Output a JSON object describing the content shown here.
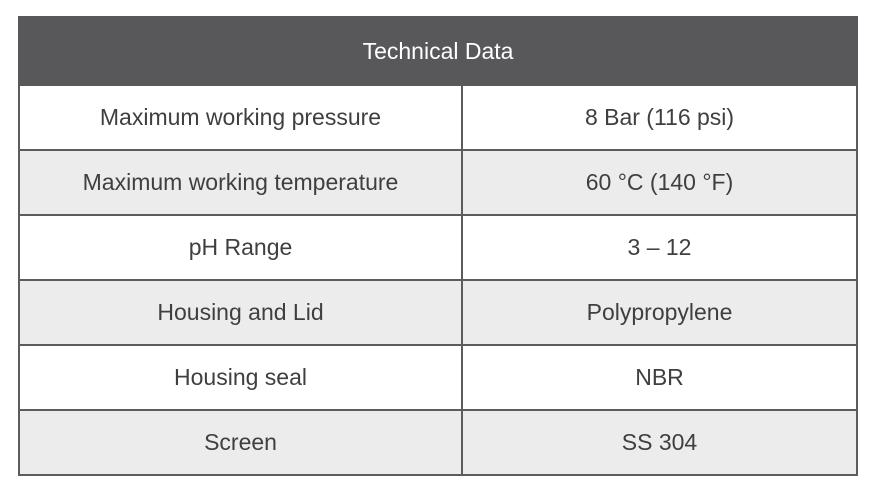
{
  "table": {
    "title": "Technical Data",
    "rows": [
      {
        "parameter": "Maximum working pressure",
        "value": "8 Bar (116 psi)"
      },
      {
        "parameter": "Maximum working temperature",
        "value": "60 °C (140 °F)"
      },
      {
        "parameter": "pH Range",
        "value": "3 – 12"
      },
      {
        "parameter": "Housing and Lid",
        "value": "Polypropylene"
      },
      {
        "parameter": "Housing seal",
        "value": "NBR"
      },
      {
        "parameter": "Screen",
        "value": "SS 304"
      }
    ]
  },
  "colors": {
    "header_background": "#58585a",
    "header_text": "#ffffff",
    "row_alt_background": "#ececec",
    "cell_text": "#3f3f3f",
    "border": "#5c5c5c"
  }
}
